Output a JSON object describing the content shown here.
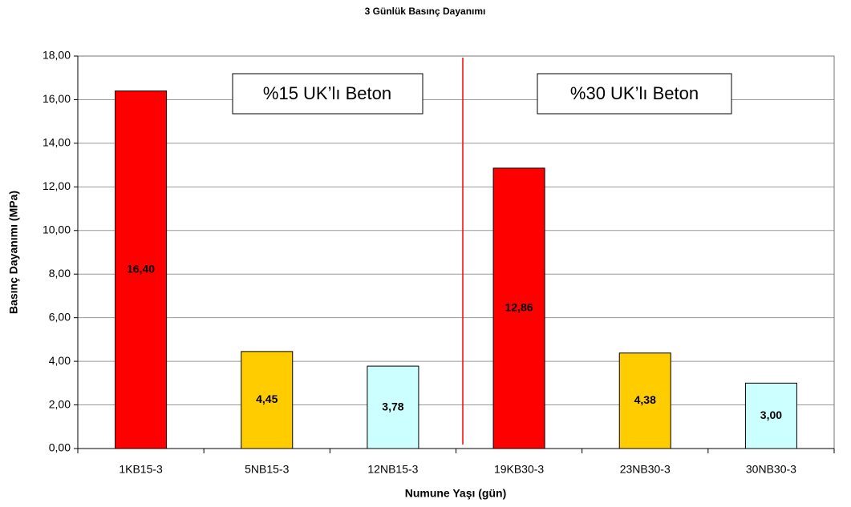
{
  "chart_data": {
    "type": "bar",
    "title": "3 Günlük Basınç Dayanımı",
    "x_label": "Numune Yaşı (gün)",
    "y_label": "Basınç Dayanımı (MPa)",
    "categories": [
      "1KB15-3",
      "5NB15-3",
      "12NB15-3",
      "19KB30-3",
      "23NB30-3",
      "30NB30-3"
    ],
    "values": [
      16.4,
      4.45,
      3.78,
      12.86,
      4.38,
      3.0
    ],
    "value_labels": [
      "16,40",
      "4,45",
      "3,78",
      "12,86",
      "4,38",
      "3,00"
    ],
    "colors": [
      "#ff0000",
      "#ffcc00",
      "#ccffff",
      "#ff0000",
      "#ffcc00",
      "#ccffff"
    ],
    "ylim": [
      0,
      18
    ],
    "yticks": [
      {
        "value": 0,
        "label": "0,00"
      },
      {
        "value": 2,
        "label": "2,00"
      },
      {
        "value": 4,
        "label": "4,00"
      },
      {
        "value": 6,
        "label": "6,00"
      },
      {
        "value": 8,
        "label": "8,00"
      },
      {
        "value": 10,
        "label": "10,00"
      },
      {
        "value": 12,
        "label": "12,00"
      },
      {
        "value": 14,
        "label": "14,00"
      },
      {
        "value": 16,
        "label": "16,00"
      },
      {
        "value": 18,
        "label": "18,00"
      }
    ],
    "grid": true,
    "annotations": [
      "%15 UK’lı Beton",
      "%30 UK’lı Beton"
    ]
  }
}
